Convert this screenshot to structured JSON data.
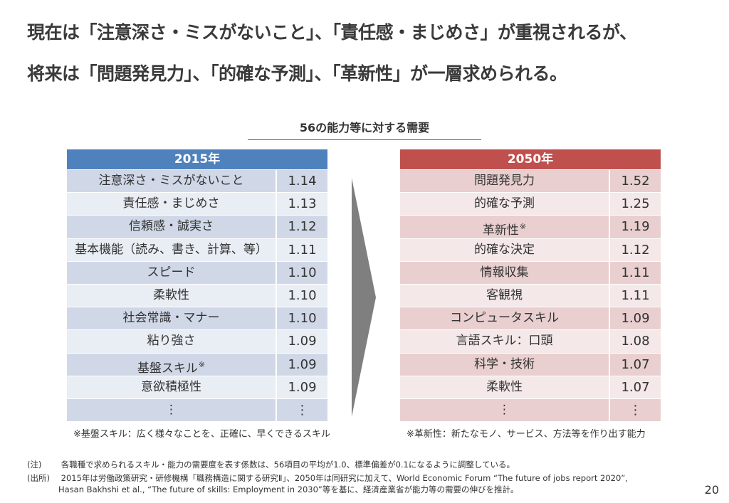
{
  "headline": {
    "line1": "現在は「注意深さ・ミスがないこと」、「責任感・まじめさ」が重視されるが、",
    "line2": "将来は「問題発見力」、「的確な予測」、「革新性」が一層求められる。"
  },
  "subtitle": "56の能力等に対する需要",
  "left_table": {
    "header": "2015年",
    "rows": [
      {
        "name": "注意深さ・ミスがないこと",
        "value": "1.14",
        "mark": ""
      },
      {
        "name": "責任感・まじめさ",
        "value": "1.13",
        "mark": ""
      },
      {
        "name": "信頼感・誠実さ",
        "value": "1.12",
        "mark": ""
      },
      {
        "name": "基本機能（読み、書き、計算、等）",
        "value": "1.11",
        "mark": ""
      },
      {
        "name": "スピード",
        "value": "1.10",
        "mark": ""
      },
      {
        "name": "柔軟性",
        "value": "1.10",
        "mark": ""
      },
      {
        "name": "社会常識・マナー",
        "value": "1.10",
        "mark": ""
      },
      {
        "name": "粘り強さ",
        "value": "1.09",
        "mark": ""
      },
      {
        "name": "基盤スキル",
        "value": "1.09",
        "mark": "※"
      },
      {
        "name": "意欲積極性",
        "value": "1.09",
        "mark": ""
      },
      {
        "name": "⋮",
        "value": "⋮",
        "mark": ""
      }
    ],
    "note": "※基盤スキル：広く様々なことを、正確に、早くできるスキル"
  },
  "right_table": {
    "header": "2050年",
    "rows": [
      {
        "name": "問題発見力",
        "value": "1.52",
        "mark": ""
      },
      {
        "name": "的確な予測",
        "value": "1.25",
        "mark": ""
      },
      {
        "name": "革新性",
        "value": "1.19",
        "mark": "※"
      },
      {
        "name": "的確な決定",
        "value": "1.12",
        "mark": ""
      },
      {
        "name": "情報収集",
        "value": "1.11",
        "mark": ""
      },
      {
        "name": "客観視",
        "value": "1.11",
        "mark": ""
      },
      {
        "name": "コンピュータスキル",
        "value": "1.09",
        "mark": ""
      },
      {
        "name": "言語スキル：口頭",
        "value": "1.08",
        "mark": ""
      },
      {
        "name": "科学・技術",
        "value": "1.07",
        "mark": ""
      },
      {
        "name": "柔軟性",
        "value": "1.07",
        "mark": ""
      },
      {
        "name": "⋮",
        "value": "⋮",
        "mark": ""
      }
    ],
    "note": "※革新性：新たなモノ、サービス、方法等を作り出す能力"
  },
  "footnotes": {
    "note_label": "(注)",
    "note_text": "各職種で求められるスキル・能力の需要度を表す係数は、56項目の平均が1.0、標準偏差が0.1になるように調整している。",
    "source_label": "(出所)",
    "source_text": "2015年は労働政策研究・研修機構「職務構造に関する研究Ⅱ」、2050年は同研究に加えて、World Economic Forum “The future of jobs report 2020”,",
    "source_text2": "Hasan Bakhshi et al., “The future of skills: Employment in 2030”等を基に、経済産業省が能力等の需要の伸びを推計。"
  },
  "page_number": "20",
  "colors": {
    "left_header": "#4f81bd",
    "right_header": "#c0504d",
    "arrow": "#7f7f7f"
  }
}
